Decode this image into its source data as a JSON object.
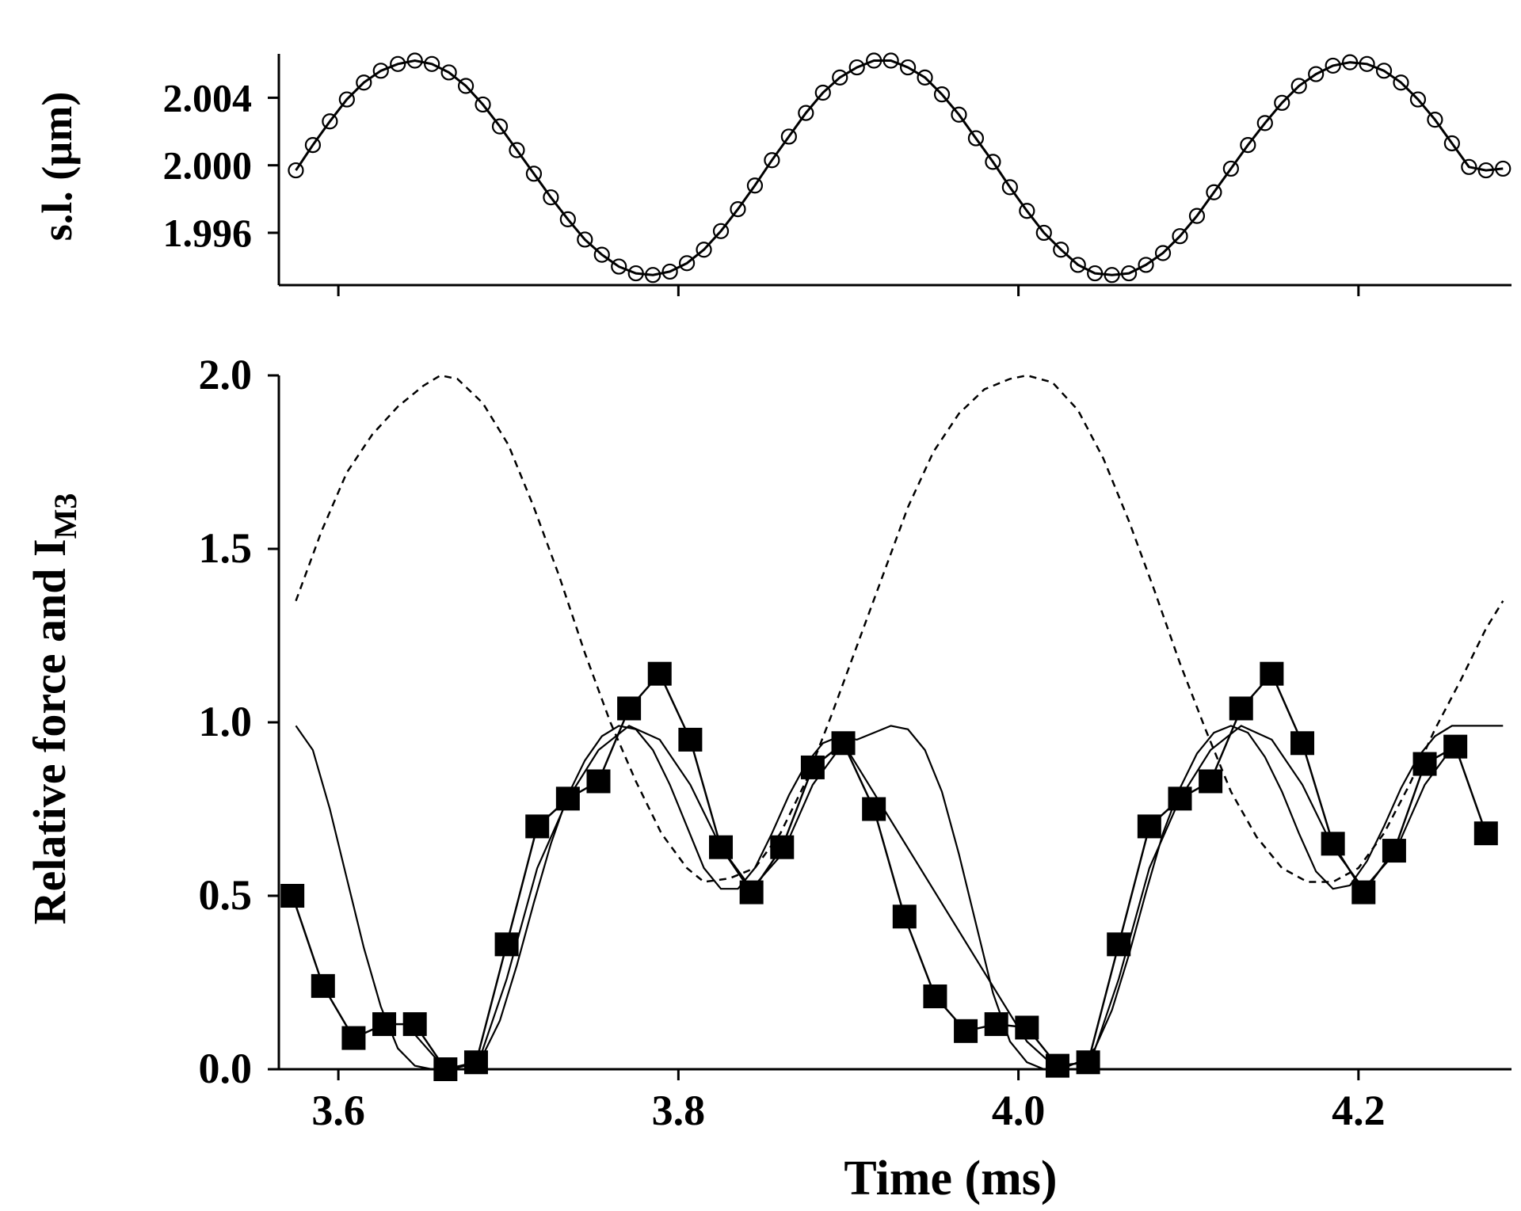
{
  "chart_data": [
    {
      "type": "scatter",
      "ylabel": "s.l. (µm)",
      "xlabel": "",
      "xlim": [
        3.565,
        4.29
      ],
      "ylim": [
        1.9929,
        2.0066
      ],
      "x_ticks": [
        3.6,
        3.8,
        4.0,
        4.2
      ],
      "y_ticks": [
        1.996,
        2.0,
        2.004
      ],
      "y_tick_labels": [
        "1.996",
        "2.000",
        "2.004"
      ],
      "grid": false,
      "series": [
        {
          "style": "open-circles-with-line",
          "color": "#000000",
          "x": [
            3.575,
            3.585,
            3.595,
            3.605,
            3.615,
            3.625,
            3.635,
            3.645,
            3.655,
            3.665,
            3.675,
            3.685,
            3.695,
            3.705,
            3.715,
            3.725,
            3.735,
            3.745,
            3.755,
            3.765,
            3.775,
            3.785,
            3.795,
            3.805,
            3.815,
            3.825,
            3.835,
            3.845,
            3.855,
            3.865,
            3.875,
            3.885,
            3.895,
            3.905,
            3.915,
            3.925,
            3.935,
            3.945,
            3.955,
            3.965,
            3.975,
            3.985,
            3.995,
            4.005,
            4.015,
            4.025,
            4.035,
            4.045,
            4.055,
            4.065,
            4.075,
            4.085,
            4.095,
            4.105,
            4.115,
            4.125,
            4.135,
            4.145,
            4.155,
            4.165,
            4.175,
            4.185,
            4.195,
            4.205,
            4.215,
            4.225,
            4.235,
            4.245,
            4.255,
            4.265,
            4.275,
            4.285
          ],
          "y": [
            1.9997,
            2.0012,
            2.0026,
            2.0039,
            2.0049,
            2.0056,
            2.006,
            2.0062,
            2.006,
            2.0055,
            2.0047,
            2.0036,
            2.0023,
            2.0009,
            1.9995,
            1.9981,
            1.9968,
            1.9956,
            1.9947,
            1.994,
            1.9936,
            1.9935,
            1.9937,
            1.9942,
            1.995,
            1.9961,
            1.9974,
            1.9988,
            2.0003,
            2.0017,
            2.0031,
            2.0043,
            2.0052,
            2.0058,
            2.0062,
            2.0062,
            2.0058,
            2.0052,
            2.0042,
            2.003,
            2.0016,
            2.0002,
            1.9987,
            1.9973,
            1.996,
            1.995,
            1.9941,
            1.9936,
            1.9935,
            1.9936,
            1.9941,
            1.9948,
            1.9958,
            1.997,
            1.9984,
            1.9998,
            2.0012,
            2.0025,
            2.0037,
            2.0047,
            2.0054,
            2.0059,
            2.0061,
            2.006,
            2.0056,
            2.0049,
            2.0039,
            2.0027,
            2.0013,
            1.9999,
            1.9997,
            1.9998
          ]
        }
      ]
    },
    {
      "type": "line",
      "ylabel": "Relative force and I",
      "ylabel_subscript": "M3",
      "xlabel": "Time (ms)",
      "xlim": [
        3.565,
        4.29
      ],
      "ylim": [
        0,
        2.0
      ],
      "x_ticks": [
        3.6,
        3.8,
        4.0,
        4.2
      ],
      "x_tick_labels": [
        "3.6",
        "3.8",
        "4.0",
        "4.2"
      ],
      "y_ticks": [
        0.0,
        0.5,
        1.0,
        1.5,
        2.0
      ],
      "y_tick_labels": [
        "0.0",
        "0.5",
        "1.0",
        "1.5",
        "2.0"
      ],
      "grid": false,
      "series": [
        {
          "style": "dashed",
          "color": "#000000",
          "x": [
            3.575,
            3.59,
            3.605,
            3.62,
            3.635,
            3.65,
            3.66,
            3.67,
            3.685,
            3.7,
            3.715,
            3.73,
            3.745,
            3.76,
            3.775,
            3.79,
            3.805,
            3.815,
            3.83,
            3.845,
            3.86,
            3.875,
            3.89,
            3.905,
            3.92,
            3.935,
            3.95,
            3.965,
            3.98,
            3.995,
            4.005,
            4.02,
            4.035,
            4.05,
            4.065,
            4.08,
            4.095,
            4.11,
            4.125,
            4.14,
            4.155,
            4.17,
            4.185,
            4.2,
            4.215,
            4.23,
            4.245,
            4.26,
            4.275,
            4.285
          ],
          "y": [
            1.35,
            1.55,
            1.72,
            1.83,
            1.91,
            1.97,
            2.0,
            1.99,
            1.92,
            1.8,
            1.62,
            1.42,
            1.2,
            1.0,
            0.83,
            0.68,
            0.58,
            0.54,
            0.55,
            0.58,
            0.68,
            0.83,
            1.02,
            1.22,
            1.42,
            1.62,
            1.78,
            1.89,
            1.96,
            1.99,
            2.0,
            1.98,
            1.9,
            1.76,
            1.58,
            1.38,
            1.17,
            0.98,
            0.8,
            0.67,
            0.58,
            0.54,
            0.54,
            0.58,
            0.68,
            0.82,
            0.98,
            1.12,
            1.27,
            1.35
          ]
        },
        {
          "style": "solid-thin",
          "color": "#000000",
          "x": [
            3.575,
            3.585,
            3.595,
            3.605,
            3.615,
            3.625,
            3.635,
            3.645,
            3.655,
            3.665,
            3.675,
            3.685,
            3.695,
            3.705,
            3.715,
            3.725,
            3.735,
            3.745,
            3.755,
            3.765,
            3.775,
            3.785,
            3.795,
            3.805,
            3.815,
            3.825,
            3.835,
            3.845,
            3.855,
            3.865,
            3.875,
            3.885,
            3.895,
            3.905,
            3.915,
            3.925,
            3.935,
            3.945,
            3.955,
            3.965,
            3.975,
            3.985,
            3.995,
            4.005,
            4.015,
            4.025,
            4.035,
            4.045,
            4.055,
            4.065,
            4.075,
            4.085,
            4.095,
            4.105,
            4.115,
            4.125,
            4.135,
            4.145,
            4.155,
            4.165,
            4.175,
            4.185,
            4.195,
            4.205,
            4.215,
            4.225,
            4.235,
            4.245,
            4.255,
            4.265,
            4.275,
            4.285
          ],
          "y": [
            0.99,
            0.92,
            0.75,
            0.55,
            0.35,
            0.18,
            0.06,
            0.01,
            0.0,
            0.0,
            0.01,
            0.04,
            0.14,
            0.3,
            0.48,
            0.65,
            0.79,
            0.89,
            0.96,
            0.99,
            0.98,
            0.92,
            0.82,
            0.7,
            0.58,
            0.52,
            0.52,
            0.58,
            0.68,
            0.79,
            0.88,
            0.94,
            0.96,
            0.95,
            0.97,
            0.99,
            0.98,
            0.92,
            0.8,
            0.62,
            0.42,
            0.22,
            0.08,
            0.02,
            0.0,
            0.0,
            0.02,
            0.06,
            0.17,
            0.33,
            0.51,
            0.68,
            0.81,
            0.91,
            0.97,
            0.99,
            0.97,
            0.9,
            0.8,
            0.68,
            0.57,
            0.52,
            0.53,
            0.6,
            0.7,
            0.81,
            0.9,
            0.96,
            0.99,
            0.99,
            0.99,
            0.99
          ]
        },
        {
          "style": "filled-squares-with-line",
          "color": "#000000",
          "x": [
            3.573,
            3.591,
            3.609,
            3.627,
            3.645,
            3.663,
            3.681,
            3.699,
            3.717,
            3.735,
            3.753,
            3.771,
            3.789,
            3.807,
            3.825,
            3.843,
            3.861,
            3.879,
            3.897,
            3.915,
            3.933,
            3.951,
            3.969,
            3.987,
            4.005,
            4.023,
            4.041,
            4.059,
            4.077,
            4.095,
            4.113,
            4.131,
            4.149,
            4.167,
            4.185,
            4.203,
            4.221,
            4.239,
            4.257,
            4.275
          ],
          "y": [
            0.5,
            0.24,
            0.09,
            0.13,
            0.13,
            0.0,
            0.02,
            0.36,
            0.7,
            0.78,
            0.83,
            1.04,
            1.14,
            0.95,
            0.64,
            0.51,
            0.64,
            0.87,
            0.94,
            0.75,
            0.44,
            0.21,
            0.11,
            0.13,
            0.12,
            0.01,
            0.02,
            0.36,
            0.7,
            0.78,
            0.83,
            1.04,
            1.14,
            0.94,
            0.65,
            0.51,
            0.63,
            0.88,
            0.93,
            0.68
          ]
        },
        {
          "style": "solid-thin",
          "color": "#000000",
          "x": [
            3.645,
            3.663,
            3.681,
            3.699,
            3.717,
            3.735,
            3.753,
            3.771,
            3.789,
            3.807,
            3.825,
            3.843,
            3.861,
            3.879,
            3.897,
            4.005,
            4.023,
            4.041,
            4.059,
            4.077,
            4.095,
            4.113,
            4.131,
            4.149,
            4.167,
            4.185,
            4.203,
            4.221,
            4.239,
            4.257
          ],
          "y": [
            0.1,
            0.0,
            0.0,
            0.26,
            0.58,
            0.78,
            0.92,
            0.99,
            0.95,
            0.82,
            0.64,
            0.52,
            0.62,
            0.82,
            0.94,
            0.08,
            0.0,
            0.0,
            0.26,
            0.58,
            0.78,
            0.92,
            0.99,
            0.95,
            0.82,
            0.64,
            0.52,
            0.62,
            0.82,
            0.94
          ]
        }
      ]
    }
  ]
}
